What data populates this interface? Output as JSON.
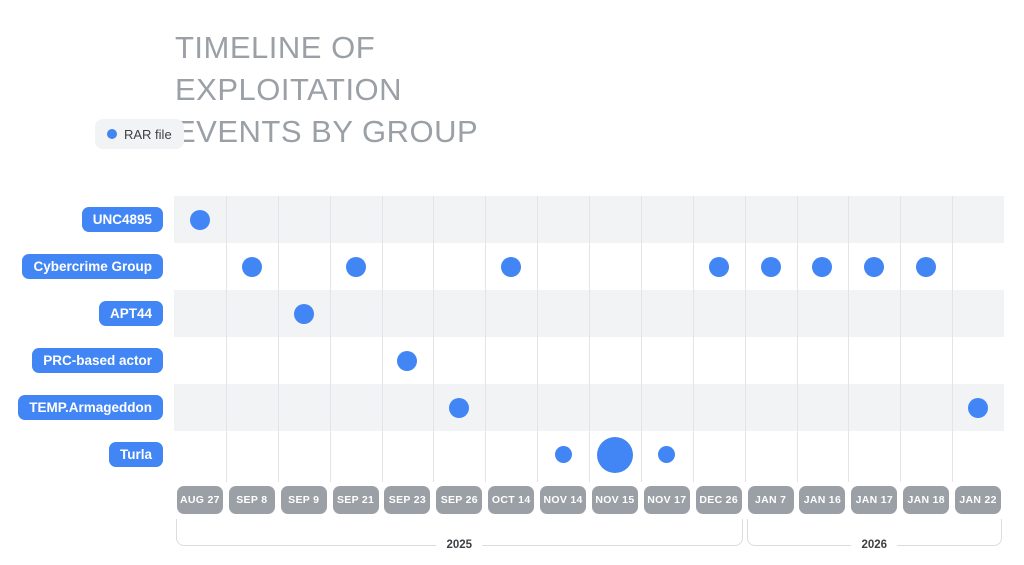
{
  "title_lines": [
    "TIMELINE OF",
    "EXPLOITATION",
    "EVENTS BY GROUP"
  ],
  "legend": {
    "label": "RAR file",
    "marker": "blue-dot"
  },
  "colors": {
    "accent_blue": "#4285F4",
    "date_pill_gray": "#9AA0A6",
    "row_stripe": "#F1F3F4",
    "gridline": "#E2E4E7",
    "title_gray": "#9AA0A6",
    "bracket_line": "#DADCE0",
    "dark_text": "#3C4043",
    "legend_background": "#F1F3F4"
  },
  "chart_data": {
    "type": "scatter",
    "title": "TIMELINE OF EXPLOITATION EVENTS BY GROUP",
    "legend_entries": [
      {
        "label": "RAR file",
        "marker": "dot"
      }
    ],
    "legend_position": "left",
    "grid": "vertical-lines-with-alternating-row-stripes",
    "groups": [
      "UNC4895",
      "Cybercrime Group",
      "APT44",
      "PRC-based actor",
      "TEMP.Armageddon",
      "Turla"
    ],
    "dates": [
      "AUG 27",
      "SEP 8",
      "SEP 9",
      "SEP 21",
      "SEP 23",
      "SEP 26",
      "OCT 14",
      "NOV 14",
      "NOV 15",
      "NOV 17",
      "DEC 26",
      "JAN 7",
      "JAN 16",
      "JAN 17",
      "JAN 18",
      "JAN 22"
    ],
    "marker_sizes_px": {
      "small": 17,
      "normal": 20,
      "large": 36
    },
    "events": [
      {
        "group": "UNC4895",
        "date": "AUG 27",
        "size": "normal"
      },
      {
        "group": "Cybercrime Group",
        "date": "SEP 8",
        "size": "normal"
      },
      {
        "group": "APT44",
        "date": "SEP 9",
        "size": "normal"
      },
      {
        "group": "Cybercrime Group",
        "date": "SEP 21",
        "size": "normal"
      },
      {
        "group": "PRC-based actor",
        "date": "SEP 23",
        "size": "normal"
      },
      {
        "group": "TEMP.Armageddon",
        "date": "SEP 26",
        "size": "normal"
      },
      {
        "group": "Cybercrime Group",
        "date": "OCT 14",
        "size": "normal"
      },
      {
        "group": "Turla",
        "date": "NOV 14",
        "size": "small"
      },
      {
        "group": "Turla",
        "date": "NOV 15",
        "size": "large"
      },
      {
        "group": "Turla",
        "date": "NOV 17",
        "size": "small"
      },
      {
        "group": "Cybercrime Group",
        "date": "DEC 26",
        "size": "normal"
      },
      {
        "group": "Cybercrime Group",
        "date": "JAN 7",
        "size": "normal"
      },
      {
        "group": "Cybercrime Group",
        "date": "JAN 16",
        "size": "normal"
      },
      {
        "group": "Cybercrime Group",
        "date": "JAN 17",
        "size": "normal"
      },
      {
        "group": "Cybercrime Group",
        "date": "JAN 18",
        "size": "normal"
      },
      {
        "group": "TEMP.Armageddon",
        "date": "JAN 22",
        "size": "normal"
      }
    ],
    "year_spans": [
      {
        "label": "2025",
        "start_date": "AUG 27",
        "end_date": "DEC 26"
      },
      {
        "label": "2026",
        "start_date": "JAN 7",
        "end_date": "JAN 22"
      }
    ]
  }
}
